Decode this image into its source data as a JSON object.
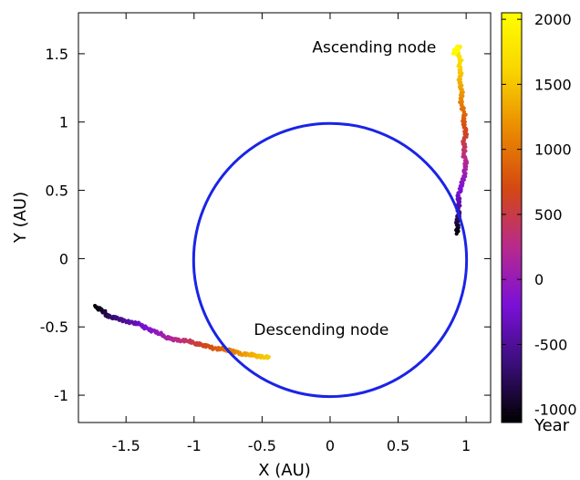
{
  "chart_data": {
    "type": "scatter",
    "xlabel": "X (AU)",
    "ylabel": "Y (AU)",
    "xlim": [
      -1.85,
      1.18
    ],
    "ylim": [
      -1.2,
      1.8
    ],
    "xticks": [
      "-1.5",
      "-1",
      "-0.5",
      "0",
      "0.5",
      "1"
    ],
    "xtick_values": [
      -1.5,
      -1,
      -0.5,
      0,
      0.5,
      1
    ],
    "yticks": [
      "-1",
      "-0.5",
      "0",
      "0.5",
      "1",
      "1.5"
    ],
    "ytick_values": [
      -1,
      -0.5,
      0,
      0.5,
      1,
      1.5
    ],
    "grid": false,
    "circle": {
      "center": [
        0,
        -0.01
      ],
      "radius": 1.0,
      "color": "#1a24e6"
    },
    "annotations": [
      {
        "text": "Ascending node",
        "x": 0.78,
        "y": 1.51
      },
      {
        "text": "Descending node",
        "x": -0.56,
        "y": -0.56
      }
    ],
    "colorbar": {
      "label": "Year",
      "range": [
        -1100,
        2050
      ],
      "ticks": [
        "2000",
        "1500",
        "1000",
        "500",
        "0",
        "-500",
        "-1000"
      ],
      "tick_values": [
        2000,
        1500,
        1000,
        500,
        0,
        -500,
        -1000
      ],
      "colormap": [
        "#000000",
        "#3a0e78",
        "#7a10d8",
        "#b82a8c",
        "#d44812",
        "#ea8a00",
        "#f9d400",
        "#ffff00"
      ]
    },
    "series": [
      {
        "points": [
          [
            0.93,
            0.19,
            -1100
          ],
          [
            0.94,
            0.23,
            -1000
          ],
          [
            0.93,
            0.28,
            -850
          ],
          [
            0.95,
            0.32,
            -700
          ],
          [
            0.94,
            0.36,
            -550
          ],
          [
            0.95,
            0.41,
            -400
          ],
          [
            0.94,
            0.46,
            -300
          ],
          [
            0.96,
            0.51,
            -200
          ],
          [
            0.97,
            0.56,
            -100
          ],
          [
            0.99,
            0.61,
            0
          ],
          [
            0.99,
            0.66,
            100
          ],
          [
            1.0,
            0.71,
            200
          ],
          [
            0.98,
            0.76,
            300
          ],
          [
            0.99,
            0.81,
            400
          ],
          [
            0.98,
            0.86,
            500
          ],
          [
            1.0,
            0.91,
            600
          ],
          [
            0.99,
            0.96,
            700
          ],
          [
            0.98,
            1.01,
            800
          ],
          [
            0.99,
            1.06,
            900
          ],
          [
            0.97,
            1.11,
            1000
          ],
          [
            0.96,
            1.16,
            1100
          ],
          [
            0.97,
            1.21,
            1200
          ],
          [
            0.96,
            1.26,
            1300
          ],
          [
            0.95,
            1.31,
            1400
          ],
          [
            0.96,
            1.36,
            1500
          ],
          [
            0.95,
            1.41,
            1600
          ],
          [
            0.96,
            1.46,
            1700
          ],
          [
            0.93,
            1.51,
            1800
          ],
          [
            0.95,
            1.55,
            1900
          ],
          [
            0.92,
            1.53,
            1950
          ],
          [
            0.91,
            1.5,
            2000
          ],
          [
            0.94,
            1.54,
            2030
          ]
        ]
      },
      {
        "points": [
          [
            -1.73,
            -0.35,
            -1100
          ],
          [
            -1.69,
            -0.37,
            -1000
          ],
          [
            -1.66,
            -0.39,
            -900
          ],
          [
            -1.64,
            -0.42,
            -800
          ],
          [
            -1.6,
            -0.43,
            -700
          ],
          [
            -1.55,
            -0.44,
            -600
          ],
          [
            -1.5,
            -0.46,
            -500
          ],
          [
            -1.45,
            -0.47,
            -400
          ],
          [
            -1.4,
            -0.48,
            -300
          ],
          [
            -1.35,
            -0.51,
            -200
          ],
          [
            -1.3,
            -0.53,
            -100
          ],
          [
            -1.25,
            -0.55,
            0
          ],
          [
            -1.2,
            -0.58,
            100
          ],
          [
            -1.15,
            -0.59,
            200
          ],
          [
            -1.1,
            -0.6,
            300
          ],
          [
            -1.05,
            -0.6,
            400
          ],
          [
            -1.0,
            -0.62,
            500
          ],
          [
            -0.95,
            -0.63,
            600
          ],
          [
            -0.9,
            -0.64,
            700
          ],
          [
            -0.85,
            -0.66,
            800
          ],
          [
            -0.8,
            -0.66,
            900
          ],
          [
            -0.75,
            -0.67,
            1000
          ],
          [
            -0.7,
            -0.68,
            1100
          ],
          [
            -0.65,
            -0.7,
            1200
          ],
          [
            -0.6,
            -0.7,
            1300
          ],
          [
            -0.55,
            -0.71,
            1400
          ],
          [
            -0.5,
            -0.72,
            1500
          ],
          [
            -0.45,
            -0.72,
            1550
          ]
        ]
      }
    ]
  }
}
